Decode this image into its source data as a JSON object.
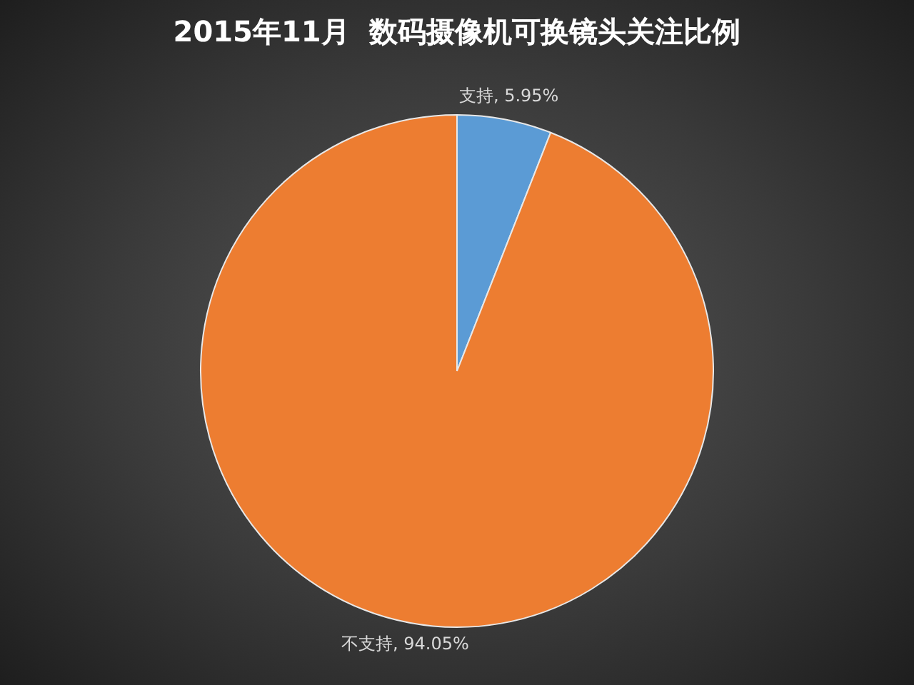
{
  "chart_data": {
    "type": "pie",
    "title": "2015年11月  数码摄像机可换镜头关注比例",
    "categories": [
      "支持",
      "不支持"
    ],
    "values": [
      5.95,
      94.05
    ],
    "colors": [
      "#5b9bd5",
      "#ed7d31"
    ],
    "value_labels": [
      "5.95%",
      "94.05%"
    ],
    "legend": false
  }
}
